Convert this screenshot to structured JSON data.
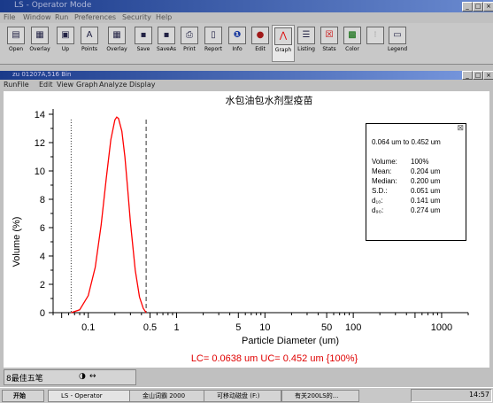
{
  "app": {
    "title": "LS - Operator Mode",
    "menu": [
      "File",
      "Window",
      "Run",
      "Preferences",
      "Security",
      "Help"
    ]
  },
  "toolbar": [
    {
      "label": "Open",
      "icon": "folder-icon"
    },
    {
      "label": "Overlay",
      "icon": "overlay-icon"
    },
    {
      "label": "Up",
      "icon": "up-icon"
    },
    {
      "label": "Points",
      "icon": "points-icon"
    },
    {
      "label": "Overlay",
      "icon": "overlay-icon"
    },
    {
      "label": "Save",
      "icon": "save-icon"
    },
    {
      "label": "SaveAs",
      "icon": "save-as-icon"
    },
    {
      "label": "Print",
      "icon": "print-icon"
    },
    {
      "label": "Report",
      "icon": "report-icon"
    },
    {
      "label": "Info",
      "icon": "info-icon"
    },
    {
      "label": "Edit",
      "icon": "edit-icon"
    },
    {
      "label": "Graph",
      "icon": "graph-icon"
    },
    {
      "label": "Listing",
      "icon": "listing-icon"
    },
    {
      "label": "Stats",
      "icon": "stats-icon"
    },
    {
      "label": "Color",
      "icon": "color-icon"
    },
    {
      "label": "",
      "icon": "blank-icon"
    },
    {
      "label": "Legend",
      "icon": "legend-icon"
    }
  ],
  "document": {
    "title": "zu 01207A,516 Bin",
    "menu": [
      "RunFile",
      "Edit",
      "View",
      "Graph",
      "Analyze",
      "Display"
    ]
  },
  "chart_data": {
    "type": "line",
    "title": "水包油包水剂型疫苗",
    "xlabel": "Particle Diameter (um)",
    "ylabel": "Volume (%)",
    "xscale": "log",
    "xlim": [
      0.04,
      2000
    ],
    "ylim": [
      0,
      14
    ],
    "xticks": [
      0.1,
      0.5,
      1,
      5,
      10,
      50,
      100,
      1000
    ],
    "xtick_labels": [
      "0.1",
      "0.5",
      "1",
      "5",
      "10",
      "50",
      "100",
      "1000"
    ],
    "yticks": [
      0,
      2,
      4,
      6,
      8,
      10,
      12,
      14
    ],
    "ytick_labels": [
      "0",
      "2",
      "4",
      "6",
      "8",
      "10",
      "12",
      "14"
    ],
    "series": [
      {
        "name": "",
        "color": "#ff0000",
        "x": [
          0.064,
          0.08,
          0.1,
          0.12,
          0.14,
          0.16,
          0.18,
          0.2,
          0.21,
          0.22,
          0.24,
          0.26,
          0.28,
          0.3,
          0.34,
          0.38,
          0.42,
          0.452
        ],
        "y": [
          0,
          0.2,
          1.2,
          3.2,
          6.2,
          9.5,
          12.2,
          13.6,
          13.8,
          13.7,
          12.8,
          11.0,
          8.7,
          6.4,
          3.0,
          1.1,
          0.3,
          0
        ]
      }
    ],
    "cursor_lines_x": [
      0.064,
      0.452
    ],
    "footer": "LC= 0.0638 um   UC= 0.452 um {100%}",
    "stats": {
      "range": "0.064 um to 0.452 um",
      "rows": [
        {
          "label": "Volume:",
          "value": "100%"
        },
        {
          "label": "Mean:",
          "value": "0.204 um"
        },
        {
          "label": "Median:",
          "value": "0.200 um"
        },
        {
          "label": "S.D.:",
          "value": "0.051 um"
        },
        {
          "label": "d₁₀:",
          "value": "0.141 um"
        },
        {
          "label": "d₉₀:",
          "value": "0.274 um"
        }
      ]
    }
  },
  "bottom_tab": "8最佳五笔",
  "taskbar": {
    "start": "开始",
    "items": [
      "LS - Operator",
      "金山词霸 2000",
      "可移动磁盘 (F:)",
      "有关200LS的..."
    ],
    "clock": "14:57"
  }
}
